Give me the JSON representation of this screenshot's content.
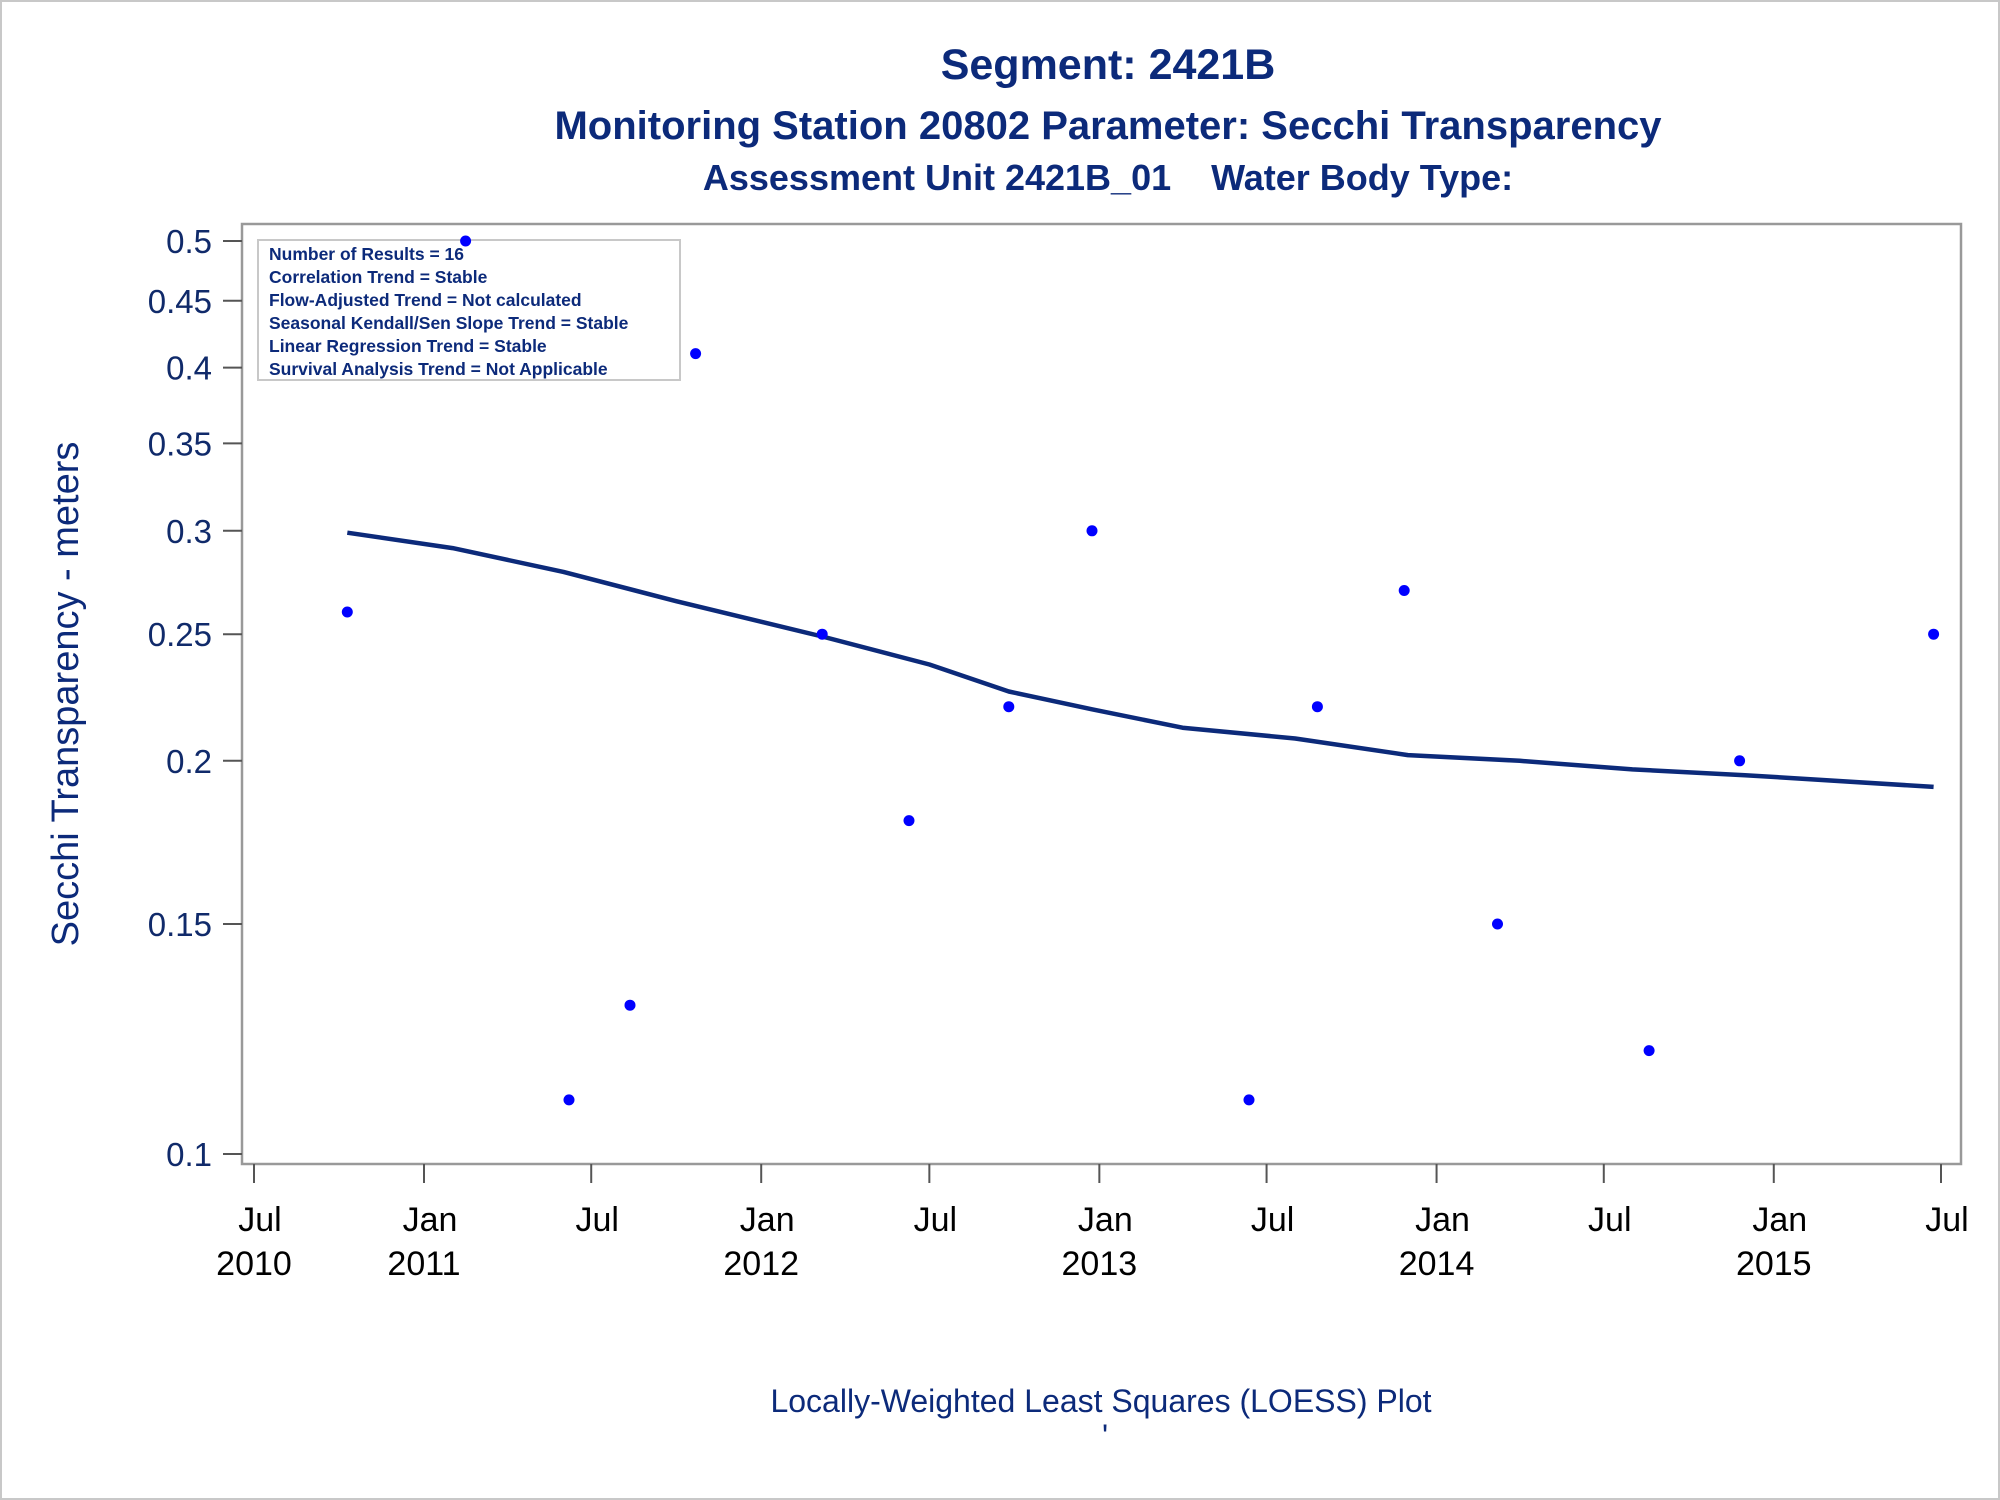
{
  "titles": {
    "line1": "Segment: 2421B",
    "line2": "Monitoring Station 20802 Parameter: Secchi Transparency",
    "line3": "Assessment Unit 2421B_01    Water Body Type:"
  },
  "footnote": {
    "text": "Locally-Weighted Least Squares (LOESS) Plot",
    "mark": "'"
  },
  "inset": {
    "lines": [
      "Number of Results = 16",
      "Correlation Trend = Stable",
      "Flow-Adjusted Trend = Not calculated",
      "Seasonal Kendall/Sen Slope Trend = Stable",
      "Linear Regression Trend = Stable",
      "Survival Analysis Trend = Not Applicable"
    ]
  },
  "colors": {
    "points": "#0000ff",
    "loess_line": "#0c2a7a",
    "text": "#0c2a7a",
    "frame": "#999999"
  },
  "chart_data": {
    "type": "scatter",
    "ylabel": "Secchi Transparency - meters",
    "y_scale": "log",
    "ylim": [
      0.1,
      0.5
    ],
    "y_ticks": [
      0.1,
      0.15,
      0.2,
      0.25,
      0.3,
      0.35,
      0.4,
      0.45,
      0.5
    ],
    "y_tick_labels": [
      "0.1",
      "0.15",
      "0.2",
      "0.25",
      "0.3",
      "0.35",
      "0.4",
      "0.45",
      "0.5"
    ],
    "xlim": [
      "2010-07-01",
      "2015-07-01"
    ],
    "x_ticks": [
      {
        "date": "2010-07-01",
        "month": "Jul",
        "year": "2010"
      },
      {
        "date": "2011-01-01",
        "month": "Jan",
        "year": "2011"
      },
      {
        "date": "2011-07-01",
        "month": "Jul",
        "year": ""
      },
      {
        "date": "2012-01-01",
        "month": "Jan",
        "year": "2012"
      },
      {
        "date": "2012-07-01",
        "month": "Jul",
        "year": ""
      },
      {
        "date": "2013-01-01",
        "month": "Jan",
        "year": "2013"
      },
      {
        "date": "2013-07-01",
        "month": "Jul",
        "year": ""
      },
      {
        "date": "2014-01-01",
        "month": "Jan",
        "year": "2014"
      },
      {
        "date": "2014-07-01",
        "month": "Jul",
        "year": ""
      },
      {
        "date": "2015-01-01",
        "month": "Jan",
        "year": "2015"
      },
      {
        "date": "2015-07-01",
        "month": "Jul",
        "year": ""
      }
    ],
    "grid": false,
    "series": [
      {
        "kind": "scatter",
        "points": [
          {
            "x": "2010-10-10",
            "y": 0.26
          },
          {
            "x": "2011-02-15",
            "y": 0.5
          },
          {
            "x": "2011-06-07",
            "y": 0.11
          },
          {
            "x": "2011-08-12",
            "y": 0.13
          },
          {
            "x": "2011-10-22",
            "y": 0.41
          },
          {
            "x": "2012-03-07",
            "y": 0.25
          },
          {
            "x": "2012-06-09",
            "y": 0.18
          },
          {
            "x": "2012-09-25",
            "y": 0.22
          },
          {
            "x": "2012-12-24",
            "y": 0.3
          },
          {
            "x": "2013-06-12",
            "y": 0.11
          },
          {
            "x": "2013-08-25",
            "y": 0.22
          },
          {
            "x": "2013-11-27",
            "y": 0.27
          },
          {
            "x": "2014-03-08",
            "y": 0.15
          },
          {
            "x": "2014-08-19",
            "y": 0.12
          },
          {
            "x": "2014-11-25",
            "y": 0.2
          },
          {
            "x": "2015-06-23",
            "y": 0.25
          }
        ]
      },
      {
        "kind": "line",
        "points": [
          {
            "x": "2010-10-10",
            "y": 0.299
          },
          {
            "x": "2011-02-01",
            "y": 0.291
          },
          {
            "x": "2011-06-01",
            "y": 0.279
          },
          {
            "x": "2011-10-01",
            "y": 0.265
          },
          {
            "x": "2012-03-07",
            "y": 0.249
          },
          {
            "x": "2012-07-01",
            "y": 0.237
          },
          {
            "x": "2012-09-25",
            "y": 0.226
          },
          {
            "x": "2012-12-24",
            "y": 0.219
          },
          {
            "x": "2013-04-01",
            "y": 0.212
          },
          {
            "x": "2013-08-01",
            "y": 0.208
          },
          {
            "x": "2013-12-01",
            "y": 0.202
          },
          {
            "x": "2014-04-01",
            "y": 0.2
          },
          {
            "x": "2014-08-01",
            "y": 0.197
          },
          {
            "x": "2014-12-01",
            "y": 0.195
          },
          {
            "x": "2015-06-23",
            "y": 0.191
          }
        ]
      }
    ]
  }
}
